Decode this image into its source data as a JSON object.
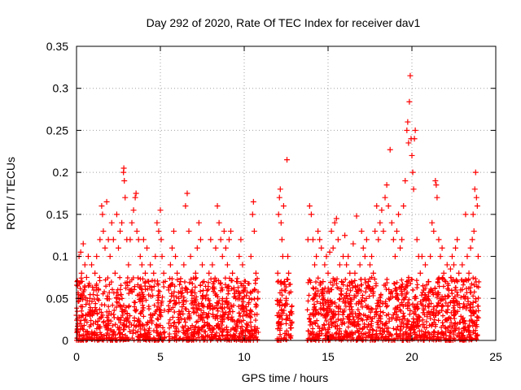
{
  "chart_data": {
    "type": "scatter",
    "title": "Day 292 of 2020, Rate Of TEC Index for receiver dav1",
    "xlabel": "GPS time / hours",
    "ylabel": "ROTI / TECUs",
    "xlim": [
      0,
      25
    ],
    "ylim": [
      0,
      0.35
    ],
    "xticks": [
      "0",
      "5",
      "10",
      "15",
      "20",
      "25"
    ],
    "yticks": [
      "0",
      "0.05",
      "0.1",
      "0.15",
      "0.2",
      "0.25",
      "0.3",
      "0.35"
    ],
    "grid": true,
    "marker": "+",
    "color": "#ff0000",
    "series": [
      {
        "points": [
          [
            0.0,
            0.03
          ],
          [
            0.05,
            0.07
          ],
          [
            0.1,
            0.05
          ],
          [
            0.15,
            0.1
          ],
          [
            0.2,
            0.02
          ],
          [
            0.25,
            0.105
          ],
          [
            0.3,
            0.08
          ],
          [
            0.35,
            0.04
          ],
          [
            0.4,
            0.115
          ],
          [
            0.45,
            0.06
          ],
          [
            0.5,
            0.09
          ],
          [
            0.55,
            0.03
          ],
          [
            0.6,
            0.075
          ],
          [
            0.7,
            0.1
          ],
          [
            0.8,
            0.05
          ],
          [
            0.9,
            0.09
          ],
          [
            1.0,
            0.02
          ],
          [
            1.1,
            0.08
          ],
          [
            1.2,
            0.1
          ],
          [
            1.3,
            0.06
          ],
          [
            1.4,
            0.12
          ],
          [
            1.5,
            0.16
          ],
          [
            1.55,
            0.15
          ],
          [
            1.6,
            0.13
          ],
          [
            1.7,
            0.11
          ],
          [
            1.8,
            0.165
          ],
          [
            1.9,
            0.12
          ],
          [
            2.0,
            0.1
          ],
          [
            2.1,
            0.14
          ],
          [
            2.2,
            0.12
          ],
          [
            2.3,
            0.08
          ],
          [
            2.4,
            0.15
          ],
          [
            2.5,
            0.11
          ],
          [
            2.6,
            0.13
          ],
          [
            2.7,
            0.14
          ],
          [
            2.8,
            0.2
          ],
          [
            2.82,
            0.205
          ],
          [
            2.85,
            0.19
          ],
          [
            2.9,
            0.17
          ],
          [
            3.0,
            0.12
          ],
          [
            3.1,
            0.09
          ],
          [
            3.2,
            0.12
          ],
          [
            3.3,
            0.14
          ],
          [
            3.4,
            0.155
          ],
          [
            3.5,
            0.17
          ],
          [
            3.55,
            0.175
          ],
          [
            3.6,
            0.13
          ],
          [
            3.7,
            0.12
          ],
          [
            3.8,
            0.1
          ],
          [
            3.9,
            0.09
          ],
          [
            4.0,
            0.12
          ],
          [
            4.1,
            0.08
          ],
          [
            4.2,
            0.11
          ],
          [
            4.3,
            0.07
          ],
          [
            4.4,
            0.09
          ],
          [
            4.5,
            0.06
          ],
          [
            4.6,
            0.08
          ],
          [
            4.7,
            0.1
          ],
          [
            4.8,
            0.14
          ],
          [
            4.9,
            0.13
          ],
          [
            5.0,
            0.155
          ],
          [
            5.05,
            0.12
          ],
          [
            5.1,
            0.1
          ],
          [
            5.2,
            0.08
          ],
          [
            5.25,
            0.01
          ],
          [
            5.5,
            0.06
          ],
          [
            5.6,
            0.09
          ],
          [
            5.7,
            0.11
          ],
          [
            5.8,
            0.13
          ],
          [
            5.9,
            0.1
          ],
          [
            6.0,
            0.08
          ],
          [
            6.1,
            0.05
          ],
          [
            6.2,
            0.07
          ],
          [
            6.3,
            0.04
          ],
          [
            6.4,
            0.09
          ],
          [
            6.5,
            0.16
          ],
          [
            6.6,
            0.175
          ],
          [
            6.7,
            0.13
          ],
          [
            6.8,
            0.1
          ],
          [
            6.9,
            0.06
          ],
          [
            7.0,
            0.05
          ],
          [
            7.1,
            0.08
          ],
          [
            7.2,
            0.11
          ],
          [
            7.3,
            0.14
          ],
          [
            7.4,
            0.12
          ],
          [
            7.5,
            0.09
          ],
          [
            7.6,
            0.07
          ],
          [
            7.7,
            0.05
          ],
          [
            7.8,
            0.04
          ],
          [
            7.9,
            0.08
          ],
          [
            8.0,
            0.12
          ],
          [
            8.1,
            0.09
          ],
          [
            8.2,
            0.07
          ],
          [
            8.3,
            0.11
          ],
          [
            8.4,
            0.16
          ],
          [
            8.5,
            0.14
          ],
          [
            8.6,
            0.12
          ],
          [
            8.7,
            0.1
          ],
          [
            8.8,
            0.13
          ],
          [
            8.9,
            0.11
          ],
          [
            9.0,
            0.09
          ],
          [
            9.1,
            0.12
          ],
          [
            9.2,
            0.13
          ],
          [
            9.3,
            0.08
          ],
          [
            9.4,
            0.06
          ],
          [
            9.5,
            0.05
          ],
          [
            9.6,
            0.07
          ],
          [
            9.7,
            0.1
          ],
          [
            9.8,
            0.12
          ],
          [
            9.9,
            0.09
          ],
          [
            10.0,
            0.06
          ],
          [
            10.1,
            0.04
          ],
          [
            10.2,
            0.03
          ],
          [
            10.3,
            0.05
          ],
          [
            10.4,
            0.1
          ],
          [
            10.5,
            0.15
          ],
          [
            10.55,
            0.165
          ],
          [
            10.6,
            0.13
          ],
          [
            10.7,
            0.08
          ],
          [
            10.8,
            0.05
          ],
          [
            12.0,
            0.08
          ],
          [
            12.05,
            0.15
          ],
          [
            12.1,
            0.17
          ],
          [
            12.15,
            0.18
          ],
          [
            12.2,
            0.14
          ],
          [
            12.25,
            0.12
          ],
          [
            12.3,
            0.1
          ],
          [
            12.35,
            0.16
          ],
          [
            12.4,
            0.07
          ],
          [
            12.5,
            0.05
          ],
          [
            12.55,
            0.215
          ],
          [
            12.6,
            0.1
          ],
          [
            12.65,
            0.08
          ],
          [
            12.7,
            0.03
          ],
          [
            12.8,
            0.015
          ],
          [
            13.8,
            0.12
          ],
          [
            13.9,
            0.16
          ],
          [
            14.0,
            0.15
          ],
          [
            14.1,
            0.12
          ],
          [
            14.2,
            0.09
          ],
          [
            14.3,
            0.1
          ],
          [
            14.4,
            0.13
          ],
          [
            14.5,
            0.12
          ],
          [
            14.6,
            0.11
          ],
          [
            14.7,
            0.07
          ],
          [
            14.8,
            0.09
          ],
          [
            14.9,
            0.1
          ],
          [
            15.0,
            0.08
          ],
          [
            15.1,
            0.105
          ],
          [
            15.2,
            0.13
          ],
          [
            15.3,
            0.11
          ],
          [
            15.4,
            0.14
          ],
          [
            15.5,
            0.145
          ],
          [
            15.6,
            0.12
          ],
          [
            15.7,
            0.09
          ],
          [
            15.8,
            0.07
          ],
          [
            15.9,
            0.1
          ],
          [
            16.0,
            0.125
          ],
          [
            16.1,
            0.09
          ],
          [
            16.2,
            0.1
          ],
          [
            16.3,
            0.08
          ],
          [
            16.4,
            0.07
          ],
          [
            16.5,
            0.115
          ],
          [
            16.6,
            0.08
          ],
          [
            16.7,
            0.148
          ],
          [
            16.8,
            0.06
          ],
          [
            16.9,
            0.09
          ],
          [
            17.0,
            0.13
          ],
          [
            17.1,
            0.11
          ],
          [
            17.2,
            0.1
          ],
          [
            17.3,
            0.12
          ],
          [
            17.4,
            0.07
          ],
          [
            17.5,
            0.09
          ],
          [
            17.6,
            0.1
          ],
          [
            17.7,
            0.08
          ],
          [
            17.8,
            0.13
          ],
          [
            17.9,
            0.16
          ],
          [
            18.0,
            0.12
          ],
          [
            18.1,
            0.14
          ],
          [
            18.2,
            0.155
          ],
          [
            18.3,
            0.13
          ],
          [
            18.4,
            0.17
          ],
          [
            18.5,
            0.185
          ],
          [
            18.6,
            0.16
          ],
          [
            18.7,
            0.227
          ],
          [
            18.8,
            0.14
          ],
          [
            18.9,
            0.12
          ],
          [
            19.0,
            0.1
          ],
          [
            19.1,
            0.13
          ],
          [
            19.2,
            0.15
          ],
          [
            19.3,
            0.11
          ],
          [
            19.4,
            0.12
          ],
          [
            19.5,
            0.16
          ],
          [
            19.6,
            0.19
          ],
          [
            19.7,
            0.25
          ],
          [
            19.75,
            0.26
          ],
          [
            19.8,
            0.235
          ],
          [
            19.85,
            0.284
          ],
          [
            19.9,
            0.315
          ],
          [
            19.95,
            0.24
          ],
          [
            20.0,
            0.22
          ],
          [
            20.05,
            0.2
          ],
          [
            20.1,
            0.18
          ],
          [
            20.15,
            0.24
          ],
          [
            20.2,
            0.25
          ],
          [
            20.3,
            0.12
          ],
          [
            20.4,
            0.1
          ],
          [
            20.5,
            0.08
          ],
          [
            20.6,
            0.1
          ],
          [
            20.7,
            0.06
          ],
          [
            20.8,
            0.09
          ],
          [
            20.9,
            0.05
          ],
          [
            21.0,
            0.07
          ],
          [
            21.1,
            0.1
          ],
          [
            21.2,
            0.14
          ],
          [
            21.3,
            0.13
          ],
          [
            21.4,
            0.19
          ],
          [
            21.45,
            0.185
          ],
          [
            21.5,
            0.17
          ],
          [
            21.6,
            0.12
          ],
          [
            21.7,
            0.1
          ],
          [
            21.8,
            0.11
          ],
          [
            21.9,
            0.08
          ],
          [
            22.0,
            0.07
          ],
          [
            22.1,
            0.09
          ],
          [
            22.2,
            0.06
          ],
          [
            22.3,
            0.085
          ],
          [
            22.4,
            0.1
          ],
          [
            22.5,
            0.09
          ],
          [
            22.6,
            0.11
          ],
          [
            22.7,
            0.12
          ],
          [
            22.8,
            0.08
          ],
          [
            22.9,
            0.06
          ],
          [
            23.0,
            0.09
          ],
          [
            23.1,
            0.07
          ],
          [
            23.2,
            0.15
          ],
          [
            23.3,
            0.1
          ],
          [
            23.4,
            0.08
          ],
          [
            23.5,
            0.11
          ],
          [
            23.6,
            0.12
          ],
          [
            23.65,
            0.15
          ],
          [
            23.7,
            0.13
          ],
          [
            23.75,
            0.18
          ],
          [
            23.8,
            0.2
          ],
          [
            23.85,
            0.17
          ],
          [
            23.9,
            0.16
          ],
          [
            23.95,
            0.1
          ]
        ]
      }
    ]
  }
}
